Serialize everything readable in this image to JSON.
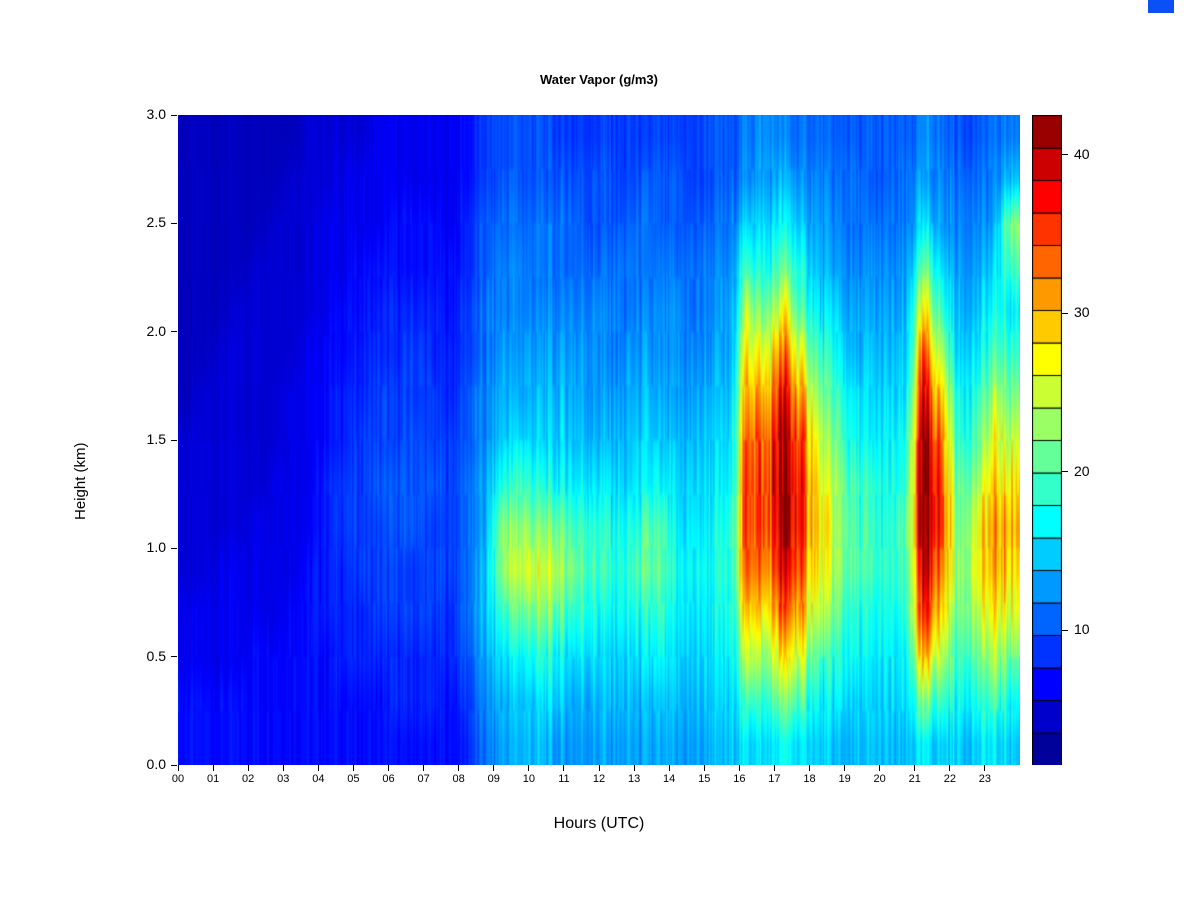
{
  "chart_data": {
    "type": "heatmap",
    "title": "Water Vapor (g/m3)",
    "xlabel": "Hours (UTC)",
    "ylabel": "Height (km)",
    "x_ticks": [
      "00",
      "01",
      "02",
      "03",
      "04",
      "05",
      "06",
      "07",
      "08",
      "09",
      "10",
      "11",
      "12",
      "13",
      "14",
      "15",
      "16",
      "17",
      "18",
      "19",
      "20",
      "21",
      "22",
      "23"
    ],
    "y_ticks": [
      "0.0",
      "0.5",
      "1.0",
      "1.5",
      "2.0",
      "2.5",
      "3.0"
    ],
    "x_range": [
      0,
      24
    ],
    "y_range": [
      0.0,
      3.0
    ],
    "value_range": [
      1.5,
      42.5
    ],
    "colorbar_ticks": [
      10,
      20,
      30,
      40
    ],
    "colorbar_segments": 20,
    "colormap": [
      {
        "t": 0.0,
        "c": "#000083"
      },
      {
        "t": 0.125,
        "c": "#0000FF"
      },
      {
        "t": 0.375,
        "c": "#00FFFF"
      },
      {
        "t": 0.625,
        "c": "#FFFF00"
      },
      {
        "t": 0.875,
        "c": "#FF0000"
      },
      {
        "t": 1.0,
        "c": "#800000"
      }
    ],
    "grid": {
      "note": "columns are half-hour profiles 00:00-23:30; each column lists g/m3 values bottom (0.1 km) to top (2.9 km) in 0.2 km steps",
      "hour_step": 0.5,
      "height_step": 0.2,
      "columns": [
        [
          7,
          7,
          6,
          6,
          5,
          5,
          5,
          5,
          4,
          4,
          4,
          4,
          4,
          4,
          4
        ],
        [
          7,
          7,
          6,
          6,
          5,
          5,
          5,
          5,
          5,
          4,
          4,
          4,
          4,
          4,
          4
        ],
        [
          7,
          7,
          6,
          6,
          6,
          5,
          5,
          5,
          5,
          5,
          4,
          4,
          4,
          4,
          4
        ],
        [
          7,
          7,
          6,
          6,
          6,
          5,
          5,
          5,
          5,
          5,
          5,
          4,
          4,
          4,
          4
        ],
        [
          7,
          7,
          7,
          6,
          6,
          6,
          5,
          5,
          5,
          5,
          5,
          5,
          4,
          4,
          4
        ],
        [
          7,
          7,
          7,
          6,
          6,
          6,
          6,
          5,
          5,
          5,
          5,
          5,
          5,
          4,
          4
        ],
        [
          7,
          7,
          7,
          7,
          6,
          6,
          6,
          6,
          6,
          5,
          5,
          5,
          5,
          5,
          4
        ],
        [
          7,
          7,
          7,
          7,
          7,
          6,
          6,
          6,
          6,
          6,
          5,
          5,
          5,
          5,
          5
        ],
        [
          7,
          7,
          7,
          8,
          8,
          8,
          8,
          7,
          7,
          7,
          6,
          6,
          6,
          5,
          5
        ],
        [
          7,
          7,
          8,
          8,
          8,
          9,
          9,
          8,
          8,
          7,
          7,
          6,
          6,
          6,
          5
        ],
        [
          7,
          7,
          8,
          8,
          9,
          9,
          9,
          9,
          8,
          8,
          7,
          7,
          6,
          6,
          5
        ],
        [
          7,
          7,
          8,
          9,
          9,
          9,
          10,
          9,
          9,
          8,
          8,
          7,
          6,
          6,
          6
        ],
        [
          7,
          8,
          8,
          9,
          9,
          10,
          10,
          9,
          9,
          8,
          8,
          7,
          7,
          6,
          6
        ],
        [
          7,
          8,
          8,
          9,
          9,
          10,
          10,
          10,
          9,
          9,
          8,
          7,
          7,
          6,
          6
        ],
        [
          7,
          8,
          8,
          9,
          9,
          9,
          10,
          9,
          9,
          8,
          8,
          7,
          7,
          6,
          6
        ],
        [
          7,
          7,
          8,
          8,
          9,
          9,
          9,
          9,
          8,
          8,
          7,
          7,
          6,
          6,
          6
        ],
        [
          8,
          9,
          10,
          11,
          11,
          11,
          11,
          10,
          10,
          9,
          9,
          8,
          8,
          7,
          7
        ],
        [
          11,
          12,
          13,
          14,
          14,
          13,
          13,
          12,
          12,
          11,
          11,
          10,
          10,
          9,
          9
        ],
        [
          13,
          14,
          16,
          19,
          23,
          22,
          18,
          15,
          14,
          13,
          12,
          12,
          11,
          10,
          10
        ],
        [
          14,
          15,
          17,
          21,
          25,
          23,
          19,
          16,
          14,
          13,
          12,
          12,
          11,
          10,
          10
        ],
        [
          14,
          15,
          18,
          22,
          25,
          22,
          18,
          15,
          14,
          13,
          12,
          11,
          11,
          10,
          10
        ],
        [
          13,
          15,
          17,
          21,
          24,
          21,
          17,
          15,
          14,
          13,
          12,
          11,
          11,
          10,
          9
        ],
        [
          13,
          14,
          16,
          19,
          22,
          20,
          17,
          15,
          14,
          13,
          12,
          11,
          11,
          10,
          9
        ],
        [
          13,
          14,
          16,
          18,
          20,
          19,
          16,
          14,
          13,
          13,
          12,
          11,
          10,
          10,
          9
        ],
        [
          13,
          14,
          15,
          17,
          19,
          18,
          16,
          14,
          13,
          12,
          12,
          11,
          10,
          10,
          9
        ],
        [
          13,
          14,
          15,
          17,
          18,
          17,
          15,
          14,
          13,
          12,
          11,
          11,
          10,
          9,
          9
        ],
        [
          13,
          14,
          16,
          18,
          21,
          19,
          16,
          15,
          14,
          13,
          12,
          11,
          11,
          10,
          9
        ],
        [
          13,
          14,
          16,
          18,
          20,
          19,
          16,
          14,
          13,
          12,
          12,
          11,
          10,
          10,
          9
        ],
        [
          13,
          14,
          15,
          16,
          17,
          16,
          15,
          14,
          13,
          12,
          12,
          11,
          10,
          10,
          9
        ],
        [
          13,
          14,
          15,
          16,
          17,
          16,
          15,
          14,
          13,
          12,
          11,
          11,
          10,
          9,
          9
        ],
        [
          14,
          15,
          16,
          17,
          18,
          17,
          16,
          15,
          14,
          13,
          12,
          12,
          11,
          10,
          10
        ],
        [
          14,
          15,
          16,
          17,
          18,
          17,
          16,
          15,
          14,
          13,
          13,
          12,
          11,
          10,
          10
        ],
        [
          16,
          20,
          26,
          31,
          35,
          37,
          37,
          36,
          33,
          29,
          25,
          20,
          16,
          13,
          12
        ],
        [
          15,
          18,
          22,
          27,
          31,
          33,
          33,
          32,
          29,
          25,
          21,
          17,
          15,
          13,
          12
        ],
        [
          17,
          22,
          28,
          34,
          39,
          41,
          42,
          41,
          38,
          33,
          27,
          21,
          17,
          14,
          12
        ],
        [
          16,
          20,
          25,
          30,
          34,
          36,
          36,
          34,
          30,
          25,
          20,
          17,
          14,
          12,
          11
        ],
        [
          15,
          17,
          20,
          24,
          27,
          28,
          27,
          25,
          22,
          19,
          16,
          14,
          13,
          12,
          11
        ],
        [
          14,
          16,
          18,
          21,
          23,
          24,
          23,
          21,
          19,
          17,
          15,
          13,
          12,
          11,
          10
        ],
        [
          14,
          15,
          17,
          18,
          20,
          20,
          19,
          17,
          16,
          14,
          13,
          12,
          11,
          11,
          10
        ],
        [
          14,
          15,
          16,
          17,
          19,
          19,
          18,
          16,
          15,
          14,
          13,
          12,
          11,
          10,
          10
        ],
        [
          14,
          15,
          16,
          17,
          18,
          18,
          17,
          16,
          15,
          14,
          13,
          12,
          11,
          10,
          10
        ],
        [
          14,
          15,
          16,
          18,
          19,
          19,
          18,
          17,
          15,
          14,
          13,
          12,
          11,
          11,
          10
        ],
        [
          16,
          22,
          30,
          36,
          40,
          42,
          42,
          41,
          38,
          33,
          27,
          21,
          16,
          13,
          12
        ],
        [
          15,
          19,
          24,
          29,
          33,
          35,
          35,
          33,
          29,
          24,
          19,
          16,
          13,
          12,
          11
        ],
        [
          15,
          17,
          19,
          21,
          22,
          21,
          20,
          18,
          17,
          15,
          14,
          13,
          12,
          11,
          10
        ],
        [
          15,
          18,
          21,
          24,
          26,
          25,
          23,
          20,
          18,
          16,
          14,
          13,
          12,
          11,
          10
        ],
        [
          16,
          19,
          23,
          27,
          30,
          31,
          29,
          26,
          23,
          20,
          17,
          15,
          13,
          12,
          11
        ],
        [
          15,
          18,
          22,
          26,
          29,
          30,
          28,
          25,
          22,
          19,
          17,
          20,
          23,
          15,
          12
        ]
      ]
    }
  }
}
